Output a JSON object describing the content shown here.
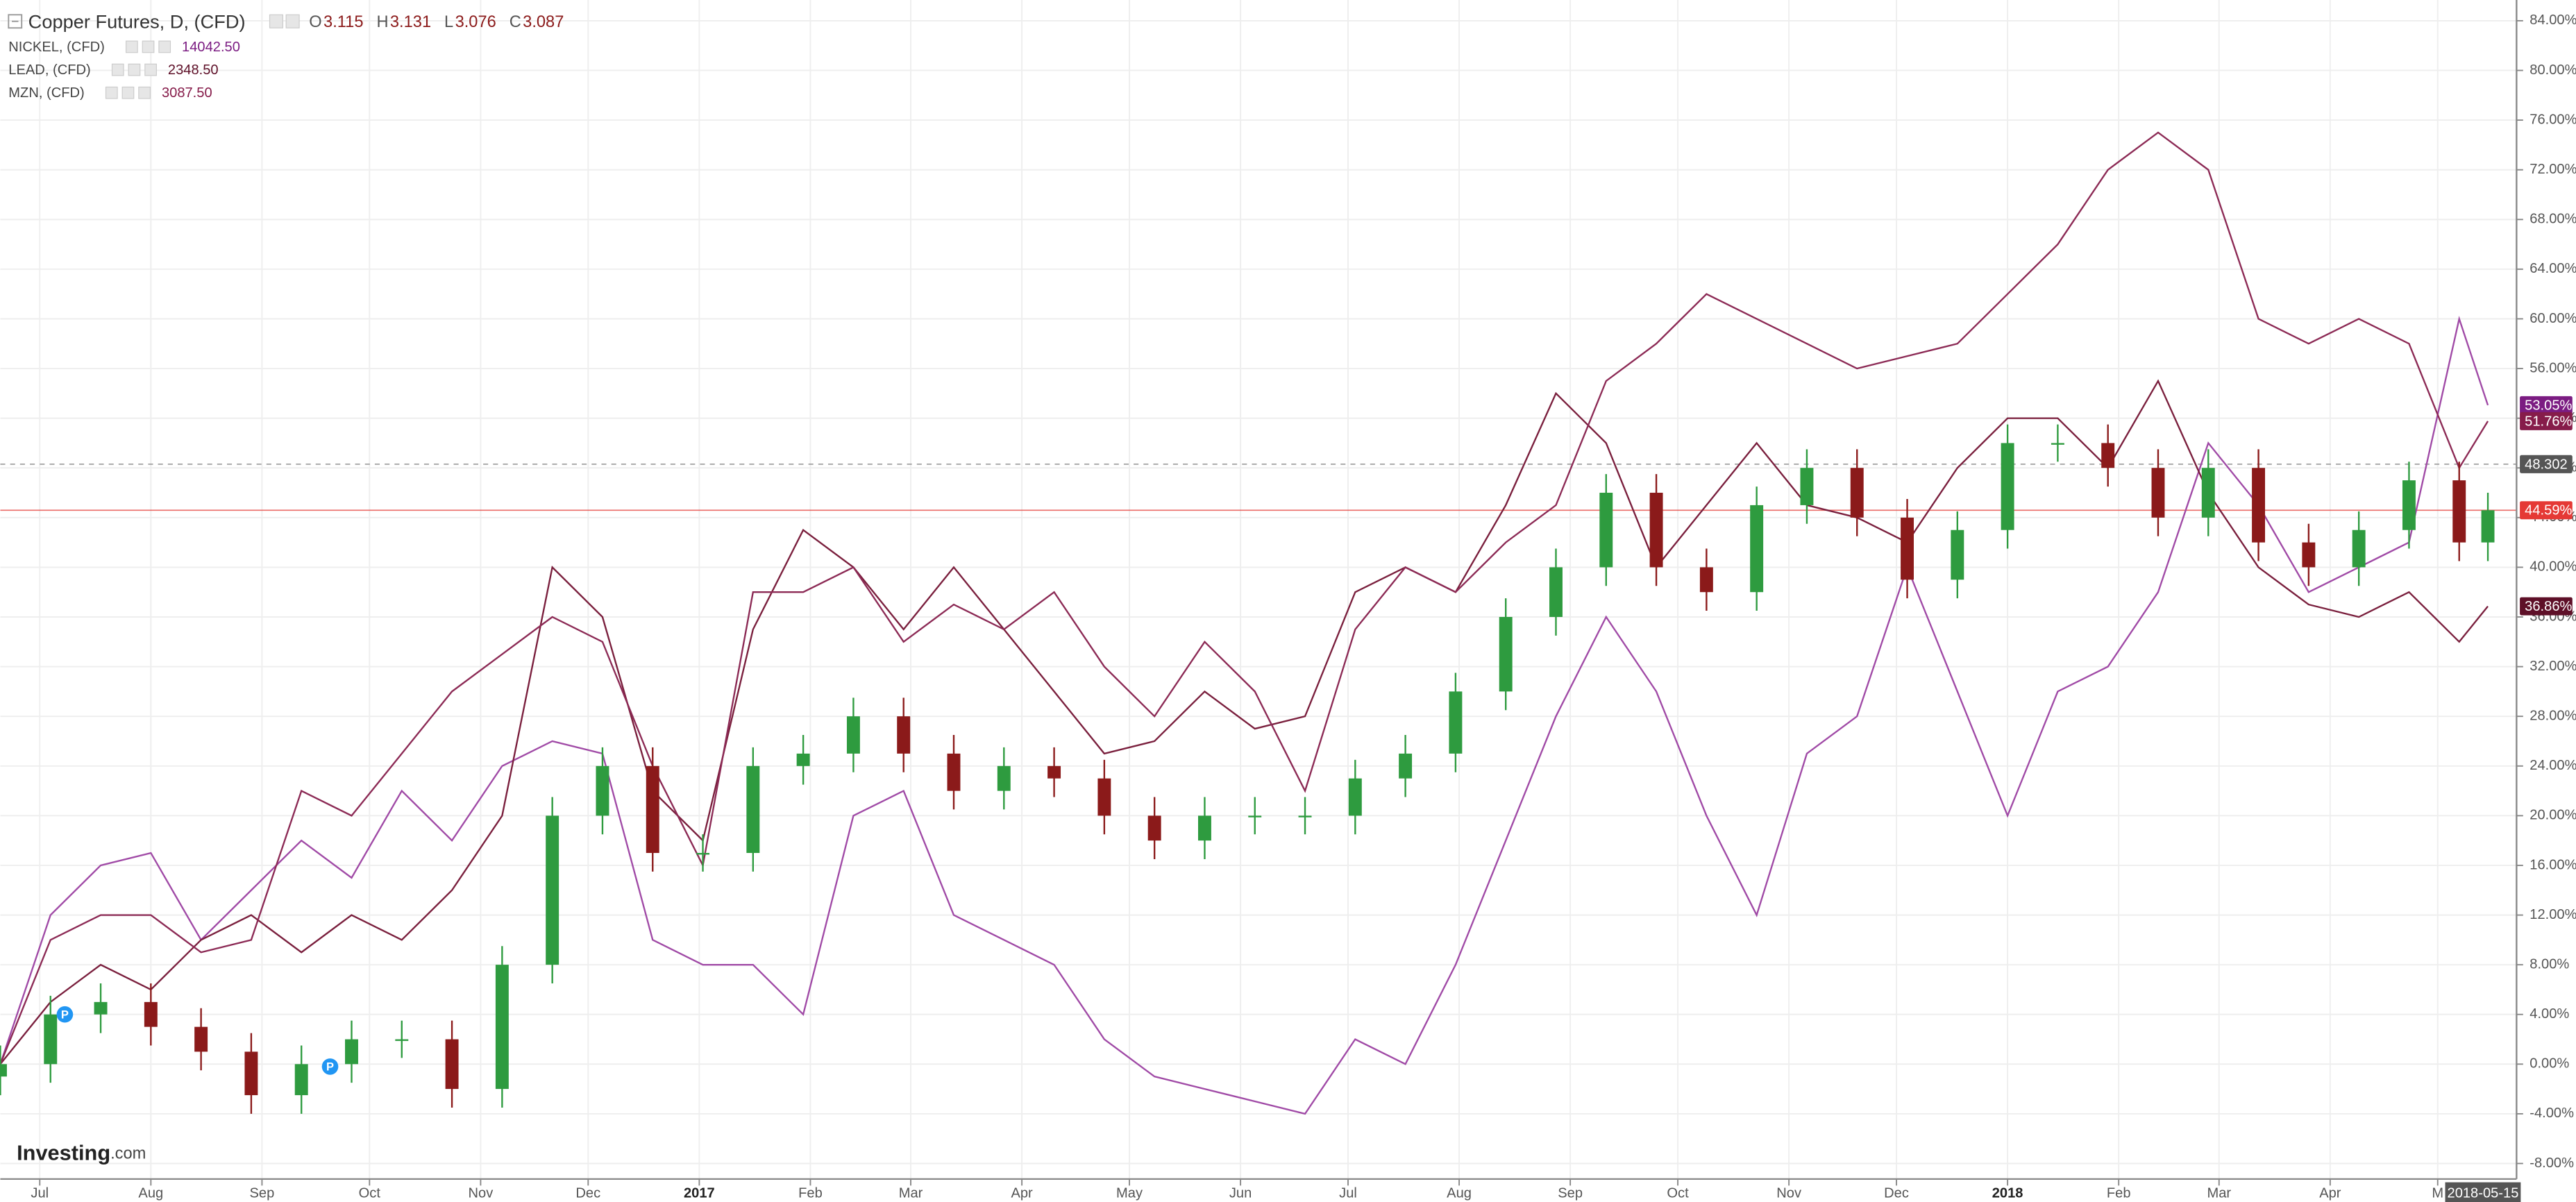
{
  "chart_data": {
    "type": "candlestick",
    "title": "Copper Futures, D, (CFD)",
    "ohlc_header": [
      {
        "prefix": "O",
        "value": 3.115
      },
      {
        "prefix": "H",
        "value": 3.131
      },
      {
        "prefix": "L",
        "value": 3.076
      },
      {
        "prefix": "C",
        "value": 3.087
      }
    ],
    "x": [
      "2016-06-20",
      "2016-07-04",
      "2016-07-18",
      "2016-08-01",
      "2016-08-15",
      "2016-08-29",
      "2016-09-12",
      "2016-09-26",
      "2016-10-10",
      "2016-10-24",
      "2016-11-07",
      "2016-11-21",
      "2016-12-05",
      "2016-12-19",
      "2017-01-02",
      "2017-01-16",
      "2017-01-30",
      "2017-02-13",
      "2017-02-27",
      "2017-03-13",
      "2017-03-27",
      "2017-04-10",
      "2017-04-24",
      "2017-05-08",
      "2017-05-22",
      "2017-06-05",
      "2017-06-19",
      "2017-07-03",
      "2017-07-17",
      "2017-07-31",
      "2017-08-14",
      "2017-08-28",
      "2017-09-11",
      "2017-09-25",
      "2017-10-09",
      "2017-10-23",
      "2017-11-06",
      "2017-11-20",
      "2017-12-04",
      "2017-12-18",
      "2018-01-01",
      "2018-01-15",
      "2018-01-29",
      "2018-02-12",
      "2018-02-26",
      "2018-03-12",
      "2018-03-26",
      "2018-04-09",
      "2018-04-23",
      "2018-05-07",
      "2018-05-15"
    ],
    "copper": {
      "open": [
        -1,
        0,
        4,
        5,
        3,
        1,
        -2.5,
        0,
        2,
        2,
        -2,
        8,
        20,
        24,
        17,
        17,
        24,
        25,
        28,
        25,
        22,
        24,
        23,
        20,
        18,
        20,
        20,
        20,
        23,
        25,
        30,
        36,
        40,
        46,
        40,
        38,
        45,
        48,
        44,
        39,
        43,
        50,
        50,
        48,
        44,
        48,
        42,
        40,
        43,
        47,
        42
      ],
      "high": [
        1.5,
        5.5,
        6.5,
        6.5,
        4.5,
        2.5,
        1.5,
        3.5,
        3.5,
        3.5,
        9.5,
        21.5,
        25.5,
        25.5,
        18.5,
        25.5,
        26.5,
        29.5,
        29.5,
        26.5,
        25.5,
        25.5,
        24.5,
        21.5,
        21.5,
        21.5,
        21.5,
        24.5,
        26.5,
        31.5,
        37.5,
        41.5,
        47.5,
        47.5,
        41.5,
        46.5,
        49.5,
        49.5,
        45.5,
        44.5,
        51.5,
        51.5,
        51.5,
        49.5,
        49.5,
        49.5,
        43.5,
        44.5,
        48.5,
        48.5,
        46
      ],
      "low": [
        -2.5,
        -1.5,
        2.5,
        1.5,
        -0.5,
        -4,
        -4,
        -1.5,
        0.5,
        -3.5,
        -3.5,
        6.5,
        18.5,
        15.5,
        15.5,
        15.5,
        22.5,
        23.5,
        23.5,
        20.5,
        20.5,
        21.5,
        18.5,
        16.5,
        16.5,
        18.5,
        18.5,
        18.5,
        21.5,
        23.5,
        28.5,
        34.5,
        38.5,
        38.5,
        36.5,
        36.5,
        43.5,
        42.5,
        37.5,
        37.5,
        41.5,
        48.5,
        46.5,
        42.5,
        42.5,
        40.5,
        38.5,
        38.5,
        41.5,
        40.5,
        40.5
      ],
      "close": [
        0,
        4,
        5,
        3,
        1,
        -2.5,
        0,
        2,
        2,
        -2,
        8,
        20,
        24,
        17,
        17,
        24,
        25,
        28,
        25,
        22,
        24,
        23,
        20,
        18,
        20,
        20,
        20,
        23,
        25,
        30,
        36,
        40,
        46,
        40,
        38,
        45,
        48,
        44,
        39,
        43,
        50,
        50,
        48,
        44,
        48,
        42,
        40,
        43,
        47,
        42,
        44.59
      ],
      "up_color": "#2e9b3f",
      "down_color": "#8b1a1a",
      "end_label": "44.59%",
      "end_color": "#e53935"
    },
    "series": [
      {
        "name": "NICKEL, (CFD)",
        "price_label": "14042.50",
        "color": "#a04aa6",
        "badge_color": "#7b1c82",
        "end_label": "53.05%",
        "values": [
          0,
          12,
          16,
          17,
          10,
          14,
          18,
          15,
          22,
          18,
          24,
          26,
          25,
          10,
          8,
          8,
          4,
          20,
          22,
          12,
          10,
          8,
          2,
          -1,
          -2,
          -3,
          -4,
          2,
          0,
          8,
          18,
          28,
          36,
          30,
          20,
          12,
          25,
          28,
          40,
          30,
          20,
          30,
          32,
          38,
          50,
          45,
          38,
          40,
          42,
          60,
          53.05
        ]
      },
      {
        "name": "LEAD, (CFD)",
        "price_label": "2348.50",
        "color": "#7a1f3d",
        "badge_color": "#5e1028",
        "end_label": "36.86%",
        "values": [
          0,
          5,
          8,
          6,
          10,
          12,
          9,
          12,
          10,
          14,
          20,
          40,
          36,
          22,
          18,
          35,
          43,
          40,
          35,
          40,
          35,
          30,
          25,
          26,
          30,
          27,
          28,
          38,
          40,
          38,
          45,
          54,
          50,
          40,
          45,
          50,
          45,
          44,
          42,
          48,
          52,
          52,
          48,
          55,
          46,
          40,
          37,
          36,
          38,
          34,
          36.86
        ]
      },
      {
        "name": "MZN, (CFD)",
        "price_label": "3087.50",
        "color": "#8c2a55",
        "badge_color": "#861c4a",
        "end_label": "51.76%",
        "values": [
          0,
          10,
          12,
          12,
          9,
          10,
          22,
          20,
          25,
          30,
          33,
          36,
          34,
          24,
          16,
          38,
          38,
          40,
          34,
          37,
          35,
          38,
          32,
          28,
          34,
          30,
          22,
          35,
          40,
          38,
          42,
          45,
          55,
          58,
          62,
          60,
          58,
          56,
          57,
          58,
          62,
          66,
          72,
          75,
          72,
          60,
          58,
          60,
          58,
          48,
          51.76
        ]
      }
    ],
    "crosshair": {
      "value": 48.302,
      "label": "48.302"
    },
    "annotations": [
      {
        "x": "2016-07-08",
        "y": 4,
        "label": "P"
      },
      {
        "x": "2016-09-20",
        "y": -0.2,
        "label": "P"
      }
    ],
    "end_date_label": "2018-05-15",
    "logo": "Investing",
    "logo_suffix": ".com",
    "xlim": [
      "2016-06-20",
      "2018-05-23"
    ],
    "xticks": [
      {
        "value": "2016-07-01",
        "label": "Jul"
      },
      {
        "value": "2016-08-01",
        "label": "Aug"
      },
      {
        "value": "2016-09-01",
        "label": "Sep"
      },
      {
        "value": "2016-10-01",
        "label": "Oct"
      },
      {
        "value": "2016-11-01",
        "label": "Nov"
      },
      {
        "value": "2016-12-01",
        "label": "Dec"
      },
      {
        "value": "2017-01-01",
        "label": "2017"
      },
      {
        "value": "2017-02-01",
        "label": "Feb"
      },
      {
        "value": "2017-03-01",
        "label": "Mar"
      },
      {
        "value": "2017-04-01",
        "label": "Apr"
      },
      {
        "value": "2017-05-01",
        "label": "May"
      },
      {
        "value": "2017-06-01",
        "label": "Jun"
      },
      {
        "value": "2017-07-01",
        "label": "Jul"
      },
      {
        "value": "2017-08-01",
        "label": "Aug"
      },
      {
        "value": "2017-09-01",
        "label": "Sep"
      },
      {
        "value": "2017-10-01",
        "label": "Oct"
      },
      {
        "value": "2017-11-01",
        "label": "Nov"
      },
      {
        "value": "2017-12-01",
        "label": "Dec"
      },
      {
        "value": "2018-01-01",
        "label": "2018"
      },
      {
        "value": "2018-02-01",
        "label": "Feb"
      },
      {
        "value": "2018-03-01",
        "label": "Mar"
      },
      {
        "value": "2018-04-01",
        "label": "Apr"
      },
      {
        "value": "2018-05-01",
        "label": "M"
      }
    ],
    "ylim": [
      -9.25,
      85.67
    ],
    "yticks": [
      {
        "value": -8,
        "label": "-8.00%"
      },
      {
        "value": -4,
        "label": "-4.00%"
      },
      {
        "value": 0,
        "label": "0.00%"
      },
      {
        "value": 4,
        "label": "4.00%"
      },
      {
        "value": 8,
        "label": "8.00%"
      },
      {
        "value": 12,
        "label": "12.00%"
      },
      {
        "value": 16,
        "label": "16.00%"
      },
      {
        "value": 20,
        "label": "20.00%"
      },
      {
        "value": 24,
        "label": "24.00%"
      },
      {
        "value": 28,
        "label": "28.00%"
      },
      {
        "value": 32,
        "label": "32.00%"
      },
      {
        "value": 36,
        "label": "36.00%"
      },
      {
        "value": 40,
        "label": "40.00%"
      },
      {
        "value": 44,
        "label": "44.00%"
      },
      {
        "value": 48,
        "label": "48.00%"
      },
      {
        "value": 52,
        "label": "52.00%"
      },
      {
        "value": 56,
        "label": "56.00%"
      },
      {
        "value": 60,
        "label": "60.00%"
      },
      {
        "value": 64,
        "label": "64.00%"
      },
      {
        "value": 68,
        "label": "68.00%"
      },
      {
        "value": 72,
        "label": "72.00%"
      },
      {
        "value": 76,
        "label": "76.00%"
      },
      {
        "value": 80,
        "label": "80.00%"
      },
      {
        "value": 84,
        "label": "84.00%"
      }
    ],
    "grid": true
  }
}
